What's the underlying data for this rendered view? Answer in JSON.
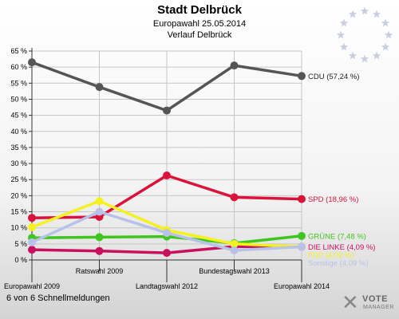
{
  "header": {
    "title": "Stadt Delbrück",
    "subtitle1": "Europawahl 25.05.2014",
    "subtitle2": "Verlauf Delbrück"
  },
  "footer": {
    "text": "6 von 6 Schnellmeldungen"
  },
  "logo": {
    "line1": "VOTE",
    "line2": "MANAGER"
  },
  "chart_data": {
    "type": "line",
    "title": "Stadt Delbrück",
    "ylim": [
      0,
      65
    ],
    "yticks": [
      0,
      5,
      10,
      15,
      20,
      25,
      30,
      35,
      40,
      45,
      50,
      55,
      60,
      65
    ],
    "ytick_suffix": " %",
    "grid": true,
    "x": [
      "Europawahl 2009",
      "Ratswahl 2009",
      "Landtagswahl 2012",
      "Bundestagswahl 2013",
      "Europawahl 2014"
    ],
    "x_label_rows": [
      "bottom",
      "top",
      "bottom",
      "top",
      "bottom"
    ],
    "series": [
      {
        "name": "CDU (57,24 %)",
        "color": "#555555",
        "values": [
          61.5,
          53.8,
          46.5,
          60.5,
          57.24
        ]
      },
      {
        "name": "SPD (18,96 %)",
        "color": "#d9133a",
        "values": [
          13.1,
          13.4,
          26.3,
          19.5,
          18.96
        ]
      },
      {
        "name": "GRÜNE (7,48 %)",
        "color": "#3ec61e",
        "values": [
          6.9,
          7.1,
          7.3,
          5.2,
          7.48
        ]
      },
      {
        "name": "DIE LINKE (4,09 %)",
        "color": "#c8105c",
        "values": [
          3.2,
          2.8,
          2.2,
          4.2,
          4.09
        ]
      },
      {
        "name": "FDP (4,09 %)",
        "color": "#f5f020",
        "values": [
          10.2,
          18.3,
          9.3,
          5.0,
          4.09
        ]
      },
      {
        "name": "Sonstige (4,09 %)",
        "color": "#b8c2e8",
        "values": [
          5.5,
          15.0,
          8.4,
          3.0,
          4.09
        ]
      }
    ]
  }
}
